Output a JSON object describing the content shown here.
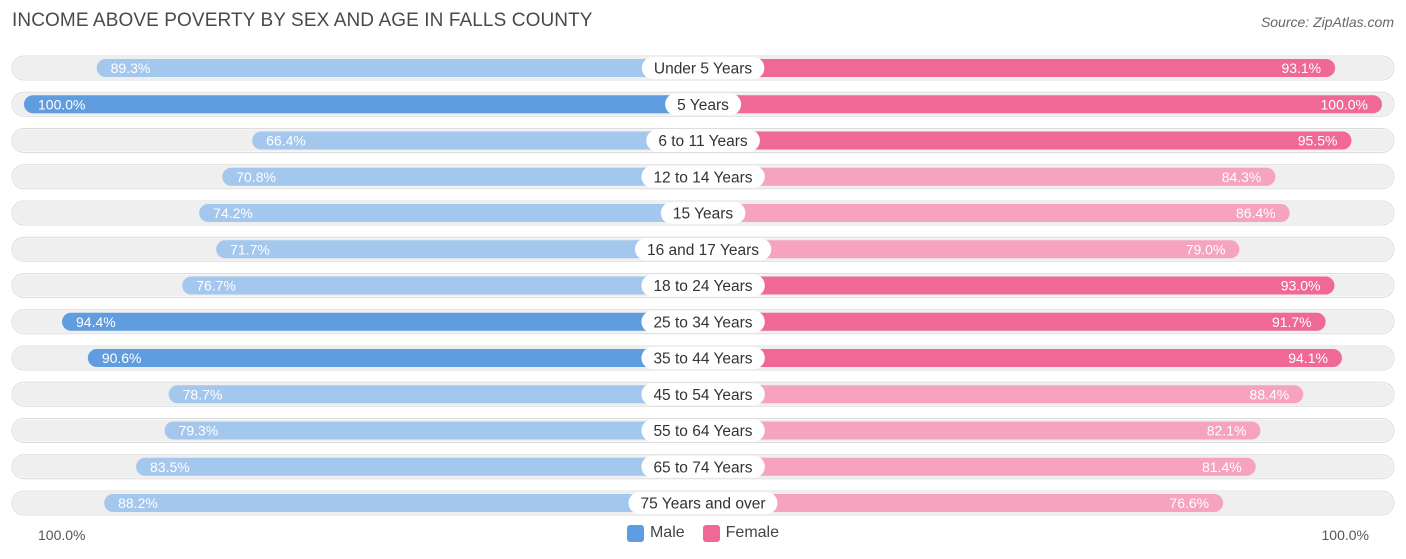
{
  "header": {
    "title": "INCOME ABOVE POVERTY BY SEX AND AGE IN FALLS COUNTY",
    "source": "Source: ZipAtlas.com"
  },
  "colors": {
    "male_strong": "#5f9de0",
    "male_light": "#a4c7ee",
    "female_strong": "#f06895",
    "female_light": "#f5a3bf",
    "track": "#efefef"
  },
  "legend": {
    "male": "Male",
    "female": "Female"
  },
  "axis": {
    "left_label": "100.0%",
    "right_label": "100.0%"
  },
  "chart_data": {
    "type": "bar",
    "orientation": "horizontal-diverging",
    "title": "INCOME ABOVE POVERTY BY SEX AND AGE IN FALLS COUNTY",
    "xlim": [
      0,
      100
    ],
    "categories": [
      "Under 5 Years",
      "5 Years",
      "6 to 11 Years",
      "12 to 14 Years",
      "15 Years",
      "16 and 17 Years",
      "18 to 24 Years",
      "25 to 34 Years",
      "35 to 44 Years",
      "45 to 54 Years",
      "55 to 64 Years",
      "65 to 74 Years",
      "75 Years and over"
    ],
    "series": [
      {
        "name": "Male",
        "values": [
          89.3,
          100.0,
          66.4,
          70.8,
          74.2,
          71.7,
          76.7,
          94.4,
          90.6,
          78.7,
          79.3,
          83.5,
          88.2
        ],
        "labels": [
          "89.3%",
          "100.0%",
          "66.4%",
          "70.8%",
          "74.2%",
          "71.7%",
          "76.7%",
          "94.4%",
          "90.6%",
          "78.7%",
          "79.3%",
          "83.5%",
          "88.2%"
        ]
      },
      {
        "name": "Female",
        "values": [
          93.1,
          100.0,
          95.5,
          84.3,
          86.4,
          79.0,
          93.0,
          91.7,
          94.1,
          88.4,
          82.1,
          81.4,
          76.6
        ],
        "labels": [
          "93.1%",
          "100.0%",
          "95.5%",
          "84.3%",
          "86.4%",
          "79.0%",
          "93.0%",
          "91.7%",
          "94.1%",
          "88.4%",
          "82.1%",
          "81.4%",
          "76.6%"
        ]
      }
    ]
  }
}
